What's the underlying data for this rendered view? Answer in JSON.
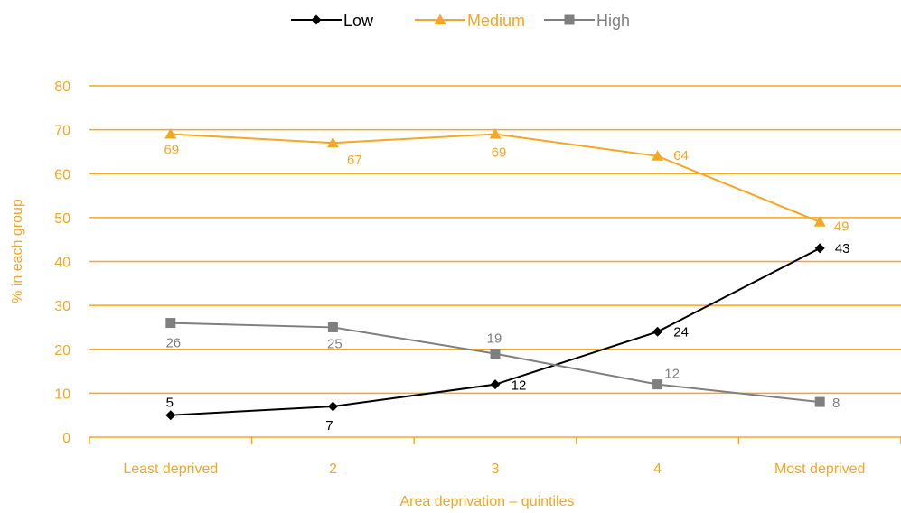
{
  "chart_data": {
    "type": "line",
    "categories": [
      "Least deprived",
      "2",
      "3",
      "4",
      "Most deprived"
    ],
    "series": [
      {
        "name": "Low",
        "values": [
          5,
          7,
          12,
          24,
          43
        ],
        "color": "#000000",
        "marker": "diamond"
      },
      {
        "name": "Medium",
        "values": [
          69,
          67,
          69,
          64,
          49
        ],
        "color": "#f5a623",
        "marker": "triangle"
      },
      {
        "name": "High",
        "values": [
          26,
          25,
          19,
          12,
          8
        ],
        "color": "#7f7f7f",
        "marker": "square"
      }
    ],
    "title": "",
    "xlabel": "Area deprivation – quintiles",
    "ylabel": "% in each group",
    "ylim": [
      0,
      80
    ],
    "yticks": [
      0,
      10,
      20,
      30,
      40,
      50,
      60,
      70,
      80
    ],
    "grid": true,
    "legend": "top-center",
    "colors": {
      "axis": "#f5a623",
      "grid": "#f5a623"
    }
  }
}
